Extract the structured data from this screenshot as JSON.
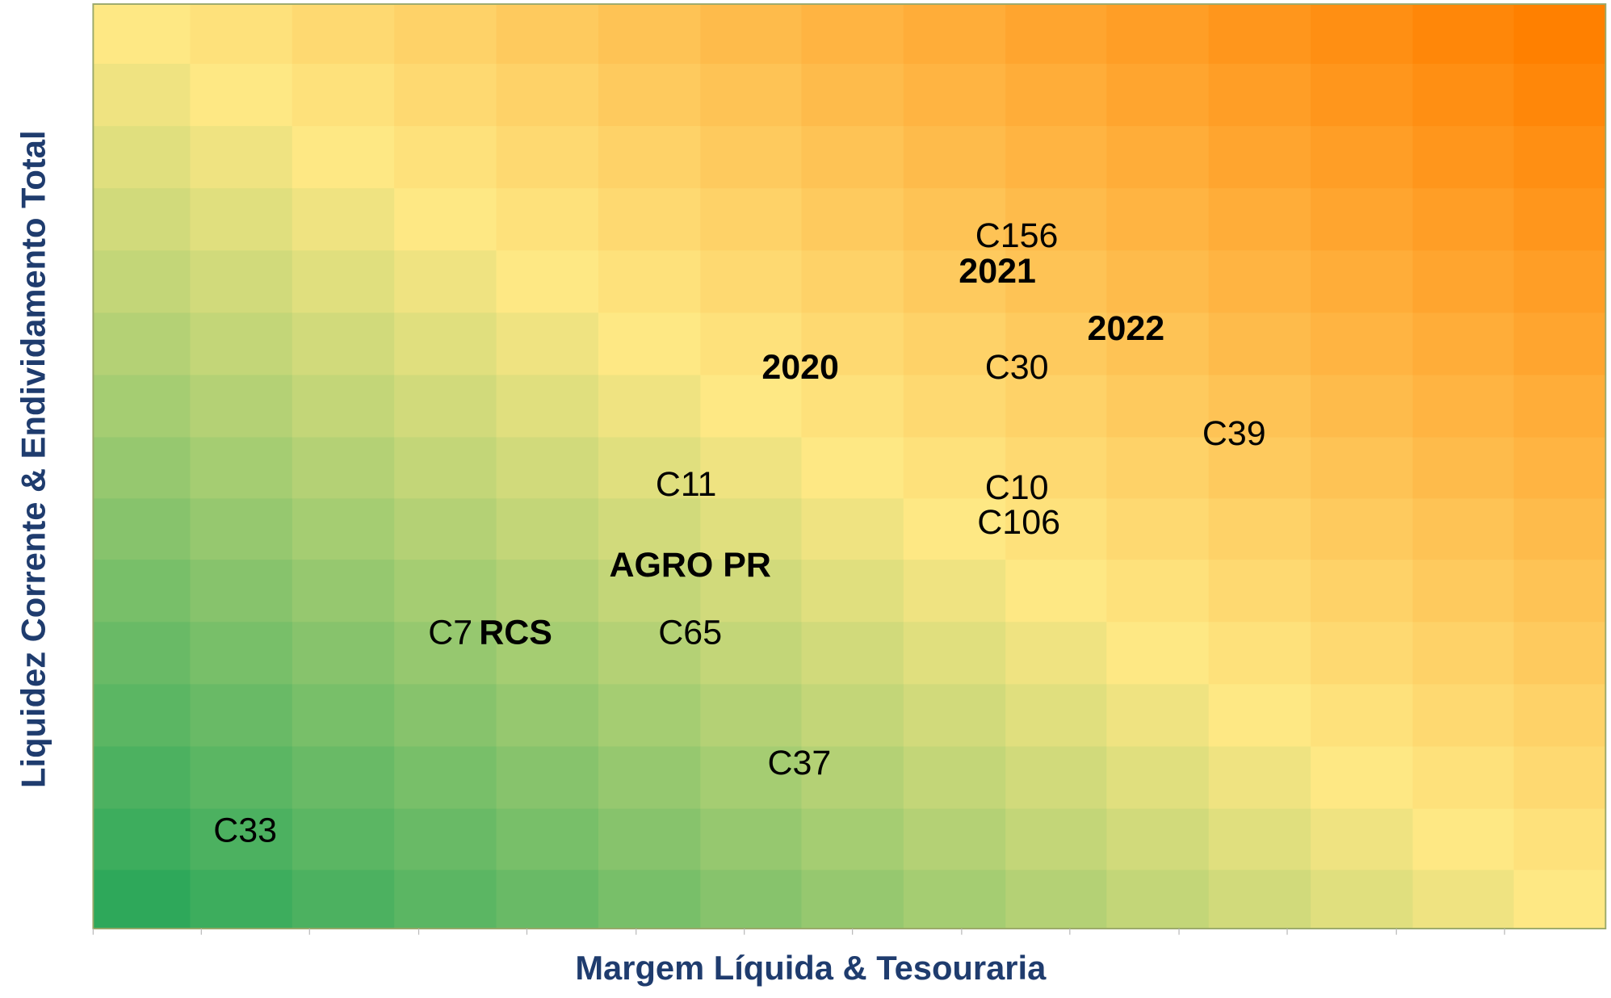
{
  "x_axis_title": "Margem Líquida & Tesouraria",
  "y_axis_title": "Liquidez Corrente & Endividamento Total",
  "labels": [
    {
      "text": "C156",
      "bold": false
    },
    {
      "text": "2021",
      "bold": true
    },
    {
      "text": "2022",
      "bold": true
    },
    {
      "text": "2020",
      "bold": true
    },
    {
      "text": "C30",
      "bold": false
    },
    {
      "text": "C39",
      "bold": false
    },
    {
      "text": "C11",
      "bold": false
    },
    {
      "text": "C10",
      "bold": false
    },
    {
      "text": "C106",
      "bold": false
    },
    {
      "text": "AGRO PR",
      "bold": true
    },
    {
      "text": "C7",
      "bold": false
    },
    {
      "text": "RCS",
      "bold": true
    },
    {
      "text": "C65",
      "bold": false
    },
    {
      "text": "C37",
      "bold": false
    },
    {
      "text": "C33",
      "bold": false
    }
  ]
}
